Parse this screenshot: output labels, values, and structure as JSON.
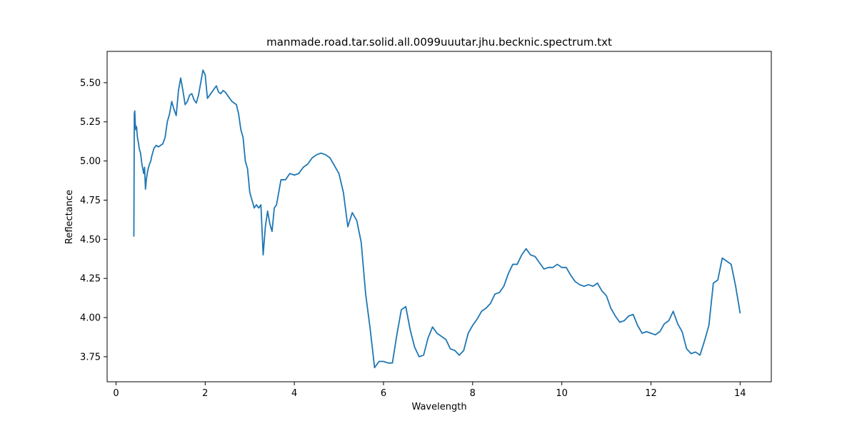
{
  "chart_data": {
    "type": "line",
    "title": "manmade.road.tar.solid.all.0099uuutar.jhu.becknic.spectrum.txt",
    "xlabel": "Wavelength",
    "ylabel": "Reflectance",
    "xlim": [
      -0.2,
      14.7
    ],
    "ylim": [
      3.59,
      5.7
    ],
    "grid": false,
    "legend": "none",
    "x_ticks": [
      {
        "value": 0,
        "label": "0"
      },
      {
        "value": 2,
        "label": "2"
      },
      {
        "value": 4,
        "label": "4"
      },
      {
        "value": 6,
        "label": "6"
      },
      {
        "value": 8,
        "label": "8"
      },
      {
        "value": 10,
        "label": "10"
      },
      {
        "value": 12,
        "label": "12"
      },
      {
        "value": 14,
        "label": "14"
      }
    ],
    "y_ticks": [
      {
        "value": 3.75,
        "label": "3.75"
      },
      {
        "value": 4.0,
        "label": "4.00"
      },
      {
        "value": 4.25,
        "label": "4.25"
      },
      {
        "value": 4.5,
        "label": "4.50"
      },
      {
        "value": 4.75,
        "label": "4.75"
      },
      {
        "value": 5.0,
        "label": "5.00"
      },
      {
        "value": 5.25,
        "label": "5.25"
      },
      {
        "value": 5.5,
        "label": "5.50"
      }
    ],
    "series": [
      {
        "color": "#1f77b4",
        "x": [
          0.4,
          0.41,
          0.42,
          0.43,
          0.44,
          0.46,
          0.48,
          0.5,
          0.52,
          0.55,
          0.58,
          0.6,
          0.62,
          0.64,
          0.66,
          0.68,
          0.7,
          0.72,
          0.75,
          0.78,
          0.8,
          0.85,
          0.9,
          0.95,
          1.0,
          1.05,
          1.1,
          1.15,
          1.2,
          1.25,
          1.3,
          1.35,
          1.4,
          1.45,
          1.5,
          1.55,
          1.6,
          1.65,
          1.7,
          1.75,
          1.8,
          1.85,
          1.9,
          1.95,
          2.0,
          2.05,
          2.1,
          2.15,
          2.2,
          2.25,
          2.3,
          2.35,
          2.4,
          2.45,
          2.5,
          2.55,
          2.6,
          2.65,
          2.7,
          2.75,
          2.8,
          2.85,
          2.9,
          2.95,
          3.0,
          3.05,
          3.1,
          3.15,
          3.2,
          3.25,
          3.3,
          3.35,
          3.4,
          3.45,
          3.5,
          3.55,
          3.6,
          3.7,
          3.8,
          3.9,
          4.0,
          4.1,
          4.2,
          4.3,
          4.4,
          4.5,
          4.6,
          4.7,
          4.8,
          4.9,
          5.0,
          5.1,
          5.2,
          5.3,
          5.4,
          5.5,
          5.6,
          5.7,
          5.8,
          5.9,
          6.0,
          6.1,
          6.2,
          6.3,
          6.4,
          6.5,
          6.6,
          6.7,
          6.8,
          6.9,
          7.0,
          7.1,
          7.2,
          7.3,
          7.4,
          7.5,
          7.6,
          7.7,
          7.8,
          7.9,
          8.0,
          8.1,
          8.2,
          8.3,
          8.4,
          8.5,
          8.6,
          8.7,
          8.8,
          8.9,
          9.0,
          9.1,
          9.2,
          9.3,
          9.4,
          9.5,
          9.6,
          9.7,
          9.8,
          9.9,
          10.0,
          10.1,
          10.2,
          10.3,
          10.4,
          10.5,
          10.6,
          10.7,
          10.8,
          10.9,
          11.0,
          11.1,
          11.2,
          11.3,
          11.4,
          11.5,
          11.6,
          11.7,
          11.8,
          11.9,
          12.0,
          12.1,
          12.2,
          12.3,
          12.4,
          12.5,
          12.6,
          12.7,
          12.8,
          12.9,
          13.0,
          13.1,
          13.2,
          13.3,
          13.4,
          13.5,
          13.6,
          13.7,
          13.8,
          13.9,
          14.0
        ],
        "y": [
          4.52,
          5.3,
          5.32,
          5.25,
          5.2,
          5.22,
          5.15,
          5.12,
          5.08,
          5.05,
          4.98,
          4.95,
          4.92,
          4.96,
          4.82,
          4.88,
          4.92,
          4.95,
          4.98,
          5.0,
          5.03,
          5.08,
          5.1,
          5.09,
          5.1,
          5.11,
          5.15,
          5.25,
          5.3,
          5.38,
          5.33,
          5.29,
          5.45,
          5.53,
          5.45,
          5.36,
          5.38,
          5.42,
          5.43,
          5.39,
          5.37,
          5.42,
          5.5,
          5.58,
          5.55,
          5.4,
          5.42,
          5.44,
          5.46,
          5.48,
          5.44,
          5.43,
          5.45,
          5.44,
          5.42,
          5.4,
          5.38,
          5.37,
          5.36,
          5.3,
          5.2,
          5.15,
          5.0,
          4.95,
          4.8,
          4.75,
          4.7,
          4.72,
          4.7,
          4.72,
          4.4,
          4.58,
          4.68,
          4.6,
          4.55,
          4.7,
          4.72,
          4.88,
          4.88,
          4.92,
          4.91,
          4.92,
          4.96,
          4.98,
          5.02,
          5.04,
          5.05,
          5.04,
          5.02,
          4.97,
          4.92,
          4.8,
          4.58,
          4.67,
          4.62,
          4.48,
          4.15,
          3.93,
          3.68,
          3.72,
          3.72,
          3.71,
          3.71,
          3.89,
          4.05,
          4.07,
          3.92,
          3.81,
          3.75,
          3.76,
          3.87,
          3.94,
          3.9,
          3.88,
          3.86,
          3.8,
          3.79,
          3.76,
          3.79,
          3.9,
          3.95,
          3.99,
          4.04,
          4.06,
          4.09,
          4.15,
          4.16,
          4.2,
          4.28,
          4.34,
          4.34,
          4.4,
          4.44,
          4.4,
          4.39,
          4.35,
          4.31,
          4.32,
          4.32,
          4.34,
          4.32,
          4.32,
          4.27,
          4.23,
          4.21,
          4.2,
          4.21,
          4.2,
          4.22,
          4.17,
          4.14,
          4.06,
          4.01,
          3.97,
          3.98,
          4.01,
          4.02,
          3.95,
          3.9,
          3.91,
          3.9,
          3.89,
          3.91,
          3.96,
          3.98,
          4.04,
          3.96,
          3.91,
          3.8,
          3.77,
          3.78,
          3.76,
          3.85,
          3.95,
          4.22,
          4.24,
          4.38,
          4.36,
          4.34,
          4.2,
          4.03
        ]
      }
    ]
  }
}
